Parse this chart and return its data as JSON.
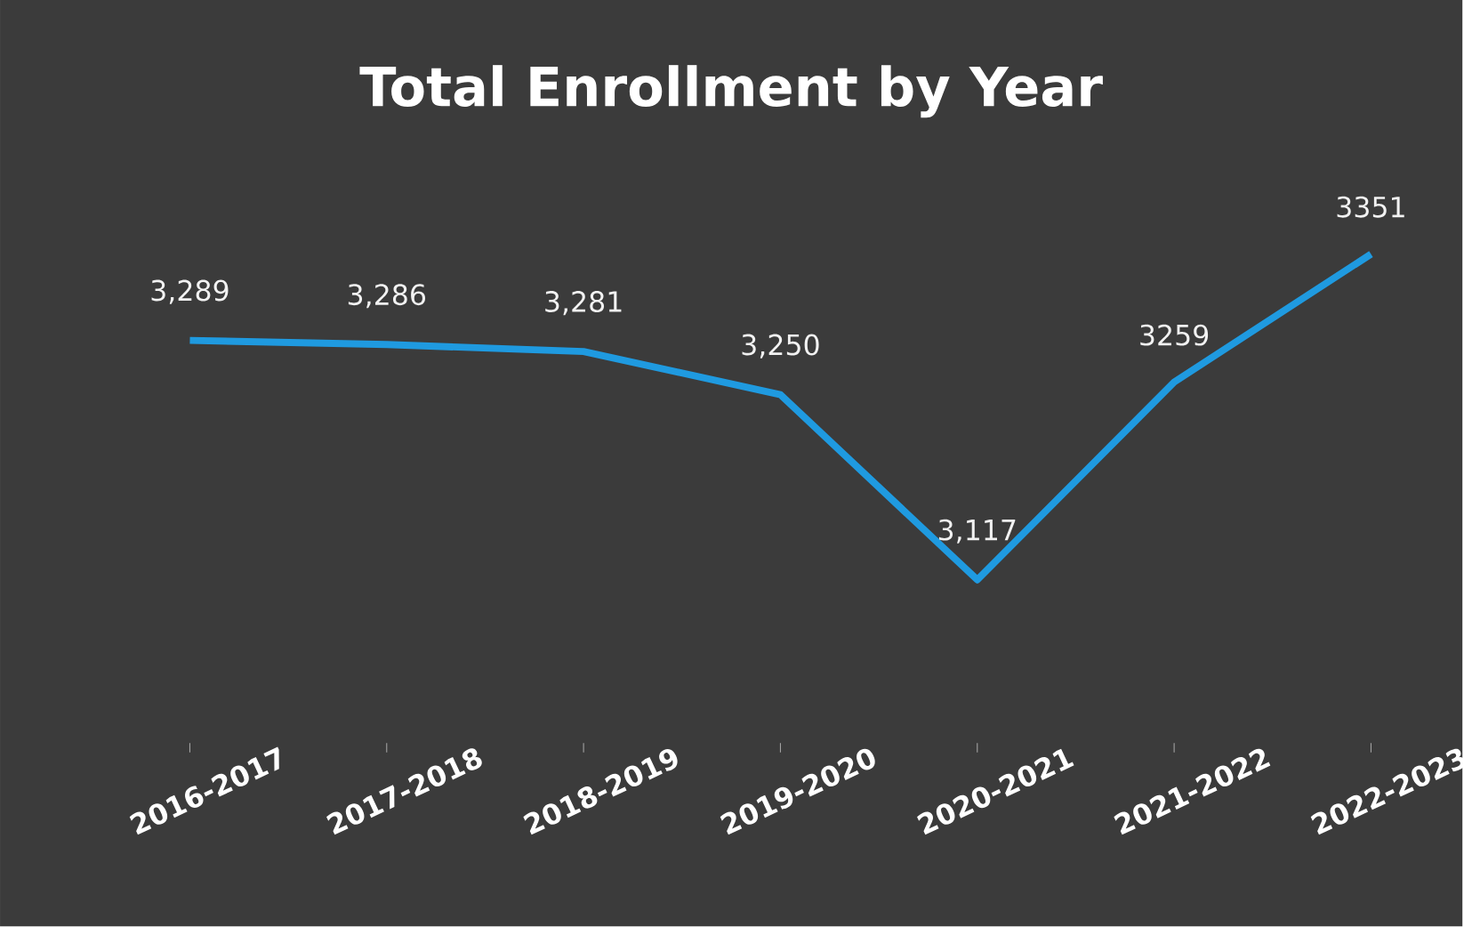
{
  "chart_data": {
    "type": "line",
    "title": "Total Enrollment by Year",
    "categories": [
      "2016-2017",
      "2017-2018",
      "2018-2019",
      "2019-2020",
      "2020-2021",
      "2021-2022",
      "2022-2023"
    ],
    "values": [
      3289,
      3286,
      3281,
      3250,
      3117,
      3259,
      3351
    ],
    "value_labels": [
      "3,289",
      "3,286",
      "3,281",
      "3,250",
      "3,117",
      "3259",
      "3351"
    ],
    "color": "#1f9ae0",
    "marker": "none",
    "line_style": "solid"
  }
}
